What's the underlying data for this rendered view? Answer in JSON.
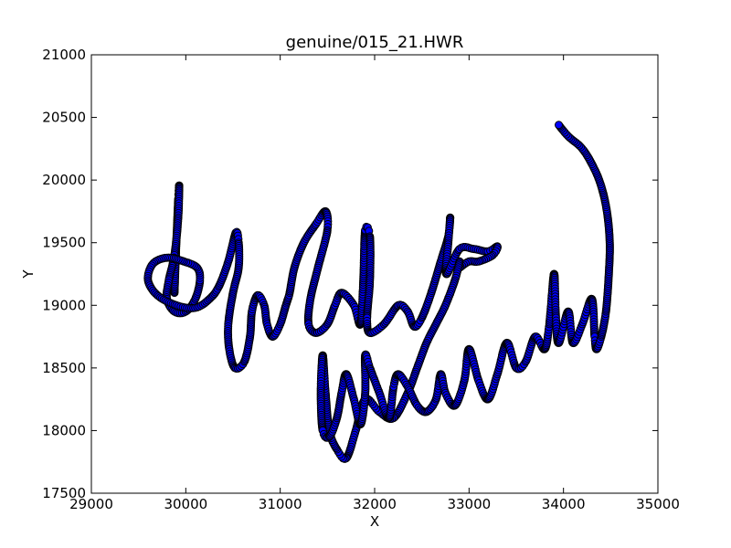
{
  "chart_data": {
    "type": "line",
    "title": "genuine/015_21.HWR",
    "xlabel": "X",
    "ylabel": "Y",
    "xlim": [
      29000,
      35000
    ],
    "ylim": [
      17500,
      21000
    ],
    "xticks": [
      29000,
      30000,
      31000,
      32000,
      33000,
      34000,
      35000
    ],
    "yticks": [
      17500,
      18000,
      18500,
      19000,
      19500,
      20000,
      20500,
      21000
    ],
    "xtick_labels": [
      "29000",
      "30000",
      "31000",
      "32000",
      "33000",
      "34000",
      "35000"
    ],
    "ytick_labels": [
      "17500",
      "18000",
      "18500",
      "19000",
      "19500",
      "20000",
      "20500",
      "21000"
    ],
    "grid": false,
    "marker": "circle",
    "line_color": "#0000ff",
    "marker_fill": "#0000ff",
    "marker_edge": "#000000",
    "series": [
      {
        "values_xy": [
          [
            29880,
            19100
          ],
          [
            29900,
            19500
          ],
          [
            29920,
            19850
          ],
          [
            29930,
            19950
          ],
          [
            29920,
            19700
          ],
          [
            29880,
            19400
          ],
          [
            29820,
            19200
          ],
          [
            29800,
            19050
          ],
          [
            29880,
            18950
          ],
          [
            30000,
            18950
          ],
          [
            30100,
            19050
          ],
          [
            30150,
            19200
          ],
          [
            30120,
            19300
          ],
          [
            29980,
            19350
          ],
          [
            29800,
            19380
          ],
          [
            29650,
            19330
          ],
          [
            29600,
            19200
          ],
          [
            29700,
            19080
          ],
          [
            29900,
            19000
          ],
          [
            30100,
            18980
          ],
          [
            30250,
            19050
          ],
          [
            30350,
            19150
          ],
          [
            30450,
            19350
          ],
          [
            30530,
            19580
          ],
          [
            30560,
            19500
          ],
          [
            30560,
            19300
          ],
          [
            30500,
            19100
          ],
          [
            30450,
            18850
          ],
          [
            30460,
            18650
          ],
          [
            30520,
            18500
          ],
          [
            30620,
            18550
          ],
          [
            30680,
            18750
          ],
          [
            30700,
            18950
          ],
          [
            30760,
            19080
          ],
          [
            30830,
            19000
          ],
          [
            30860,
            18850
          ],
          [
            30920,
            18750
          ],
          [
            31000,
            18850
          ],
          [
            31060,
            19000
          ],
          [
            31100,
            19100
          ],
          [
            31150,
            19300
          ],
          [
            31250,
            19500
          ],
          [
            31380,
            19650
          ],
          [
            31480,
            19750
          ],
          [
            31500,
            19600
          ],
          [
            31400,
            19300
          ],
          [
            31320,
            19050
          ],
          [
            31300,
            18850
          ],
          [
            31380,
            18780
          ],
          [
            31500,
            18850
          ],
          [
            31580,
            19000
          ],
          [
            31650,
            19100
          ],
          [
            31780,
            19000
          ],
          [
            31850,
            18850
          ],
          [
            31880,
            19200
          ],
          [
            31900,
            19600
          ],
          [
            31950,
            19550
          ],
          [
            31950,
            19200
          ],
          [
            31920,
            18900
          ],
          [
            31950,
            18780
          ],
          [
            32100,
            18850
          ],
          [
            32250,
            19000
          ],
          [
            32350,
            18950
          ],
          [
            32420,
            18830
          ],
          [
            32500,
            18900
          ],
          [
            32600,
            19100
          ],
          [
            32700,
            19350
          ],
          [
            32780,
            19550
          ],
          [
            32800,
            19700
          ],
          [
            32780,
            19500
          ],
          [
            32760,
            19250
          ],
          [
            32900,
            19450
          ],
          [
            33050,
            19450
          ],
          [
            33200,
            19430
          ],
          [
            33300,
            19470
          ],
          [
            33250,
            19400
          ],
          [
            33100,
            19350
          ],
          [
            33000,
            19350
          ],
          [
            32900,
            19300
          ]
        ]
      },
      {
        "values_xy": [
          [
            32900,
            19350
          ],
          [
            32850,
            19200
          ],
          [
            32750,
            19000
          ],
          [
            32650,
            18850
          ],
          [
            32550,
            18700
          ],
          [
            32450,
            18500
          ],
          [
            32350,
            18300
          ],
          [
            32200,
            18100
          ],
          [
            32050,
            18150
          ],
          [
            31900,
            18250
          ],
          [
            31800,
            18000
          ],
          [
            31700,
            17780
          ],
          [
            31600,
            17850
          ],
          [
            31520,
            18000
          ],
          [
            31480,
            18300
          ],
          [
            31450,
            18600
          ],
          [
            31430,
            18300
          ],
          [
            31450,
            18000
          ],
          [
            31520,
            17950
          ],
          [
            31600,
            18100
          ],
          [
            31650,
            18300
          ],
          [
            31700,
            18450
          ],
          [
            31780,
            18250
          ],
          [
            31850,
            18050
          ],
          [
            31900,
            18300
          ],
          [
            31900,
            18600
          ],
          [
            31950,
            18500
          ],
          [
            32050,
            18300
          ],
          [
            32150,
            18100
          ],
          [
            32200,
            18350
          ],
          [
            32250,
            18450
          ],
          [
            32350,
            18350
          ],
          [
            32450,
            18200
          ],
          [
            32550,
            18150
          ],
          [
            32650,
            18250
          ],
          [
            32700,
            18450
          ],
          [
            32750,
            18300
          ],
          [
            32850,
            18200
          ],
          [
            32950,
            18400
          ],
          [
            33000,
            18650
          ],
          [
            33100,
            18400
          ],
          [
            33200,
            18250
          ],
          [
            33300,
            18450
          ],
          [
            33400,
            18700
          ],
          [
            33500,
            18500
          ],
          [
            33600,
            18550
          ],
          [
            33700,
            18750
          ],
          [
            33800,
            18650
          ],
          [
            33850,
            18850
          ],
          [
            33900,
            19250
          ],
          [
            33920,
            18900
          ],
          [
            33950,
            18700
          ],
          [
            34050,
            18950
          ],
          [
            34100,
            18700
          ],
          [
            34200,
            18850
          ],
          [
            34300,
            19050
          ],
          [
            34330,
            18750
          ],
          [
            34350,
            18650
          ],
          [
            34400,
            18750
          ],
          [
            34450,
            18950
          ],
          [
            34480,
            19250
          ],
          [
            34490,
            19500
          ],
          [
            34460,
            19750
          ],
          [
            34400,
            19950
          ],
          [
            34320,
            20100
          ],
          [
            34200,
            20250
          ],
          [
            34050,
            20350
          ],
          [
            33950,
            20440
          ]
        ]
      }
    ]
  }
}
